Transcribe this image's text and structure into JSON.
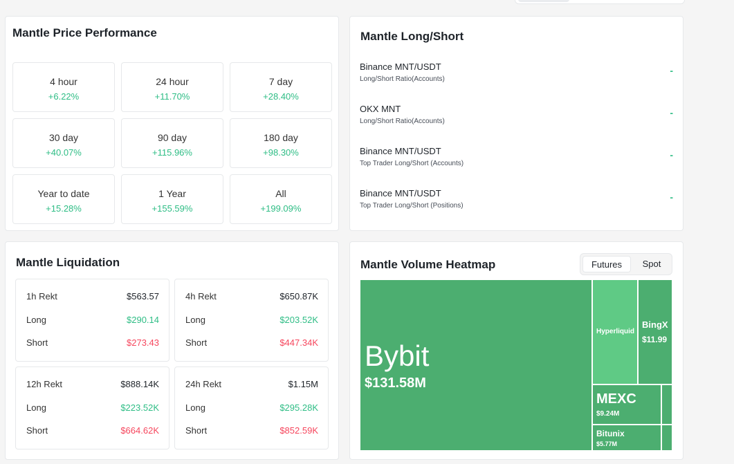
{
  "price_performance": {
    "title": "Mantle Price Performance",
    "periods": [
      {
        "label": "4 hour",
        "value": "+6.22%"
      },
      {
        "label": "24 hour",
        "value": "+11.70%"
      },
      {
        "label": "7 day",
        "value": "+28.40%"
      },
      {
        "label": "30 day",
        "value": "+40.07%"
      },
      {
        "label": "90 day",
        "value": "+115.96%"
      },
      {
        "label": "180 day",
        "value": "+98.30%"
      },
      {
        "label": "Year to date",
        "value": "+15.28%"
      },
      {
        "label": "1 Year",
        "value": "+155.59%"
      },
      {
        "label": "All",
        "value": "+199.09%"
      }
    ]
  },
  "long_short": {
    "title": "Mantle Long/Short",
    "rows": [
      {
        "exchange": "Binance MNT/USDT",
        "metric": "Long/Short Ratio(Accounts)",
        "value": "-"
      },
      {
        "exchange": "OKX MNT",
        "metric": "Long/Short Ratio(Accounts)",
        "value": "-"
      },
      {
        "exchange": "Binance MNT/USDT",
        "metric": "Top Trader Long/Short (Accounts)",
        "value": "-"
      },
      {
        "exchange": "Binance MNT/USDT",
        "metric": "Top Trader Long/Short (Positions)",
        "value": "-"
      }
    ]
  },
  "liquidation": {
    "title": "Mantle Liquidation",
    "long_label": "Long",
    "short_label": "Short",
    "boxes": [
      {
        "label": "1h Rekt",
        "total": "$563.57",
        "long": "$290.14",
        "short": "$273.43"
      },
      {
        "label": "4h Rekt",
        "total": "$650.87K",
        "long": "$203.52K",
        "short": "$447.34K"
      },
      {
        "label": "12h Rekt",
        "total": "$888.14K",
        "long": "$223.52K",
        "short": "$664.62K"
      },
      {
        "label": "24h Rekt",
        "total": "$1.15M",
        "long": "$295.28K",
        "short": "$852.59K"
      }
    ]
  },
  "heatmap": {
    "title": "Mantle Volume Heatmap",
    "toggle": {
      "futures": "Futures",
      "spot": "Spot",
      "active": "Futures"
    },
    "tiles": [
      {
        "name": "Bybit",
        "amount": "$131.58M",
        "color": "#4cae70"
      },
      {
        "name": "Hyperliquid",
        "amount": "",
        "color": "#5fca85"
      },
      {
        "name": "BingX",
        "amount": "$11.99",
        "color": "#4cae70"
      },
      {
        "name": "MEXC",
        "amount": "$9.24M",
        "color": "#4cae70"
      },
      {
        "name": "Bitunix",
        "amount": "$5.77M",
        "color": "#4cae70"
      }
    ],
    "colors": {
      "base": "#4cae70",
      "highlight": "#5fca85",
      "positive": "#2ebd85",
      "negative": "#f6465d"
    }
  }
}
